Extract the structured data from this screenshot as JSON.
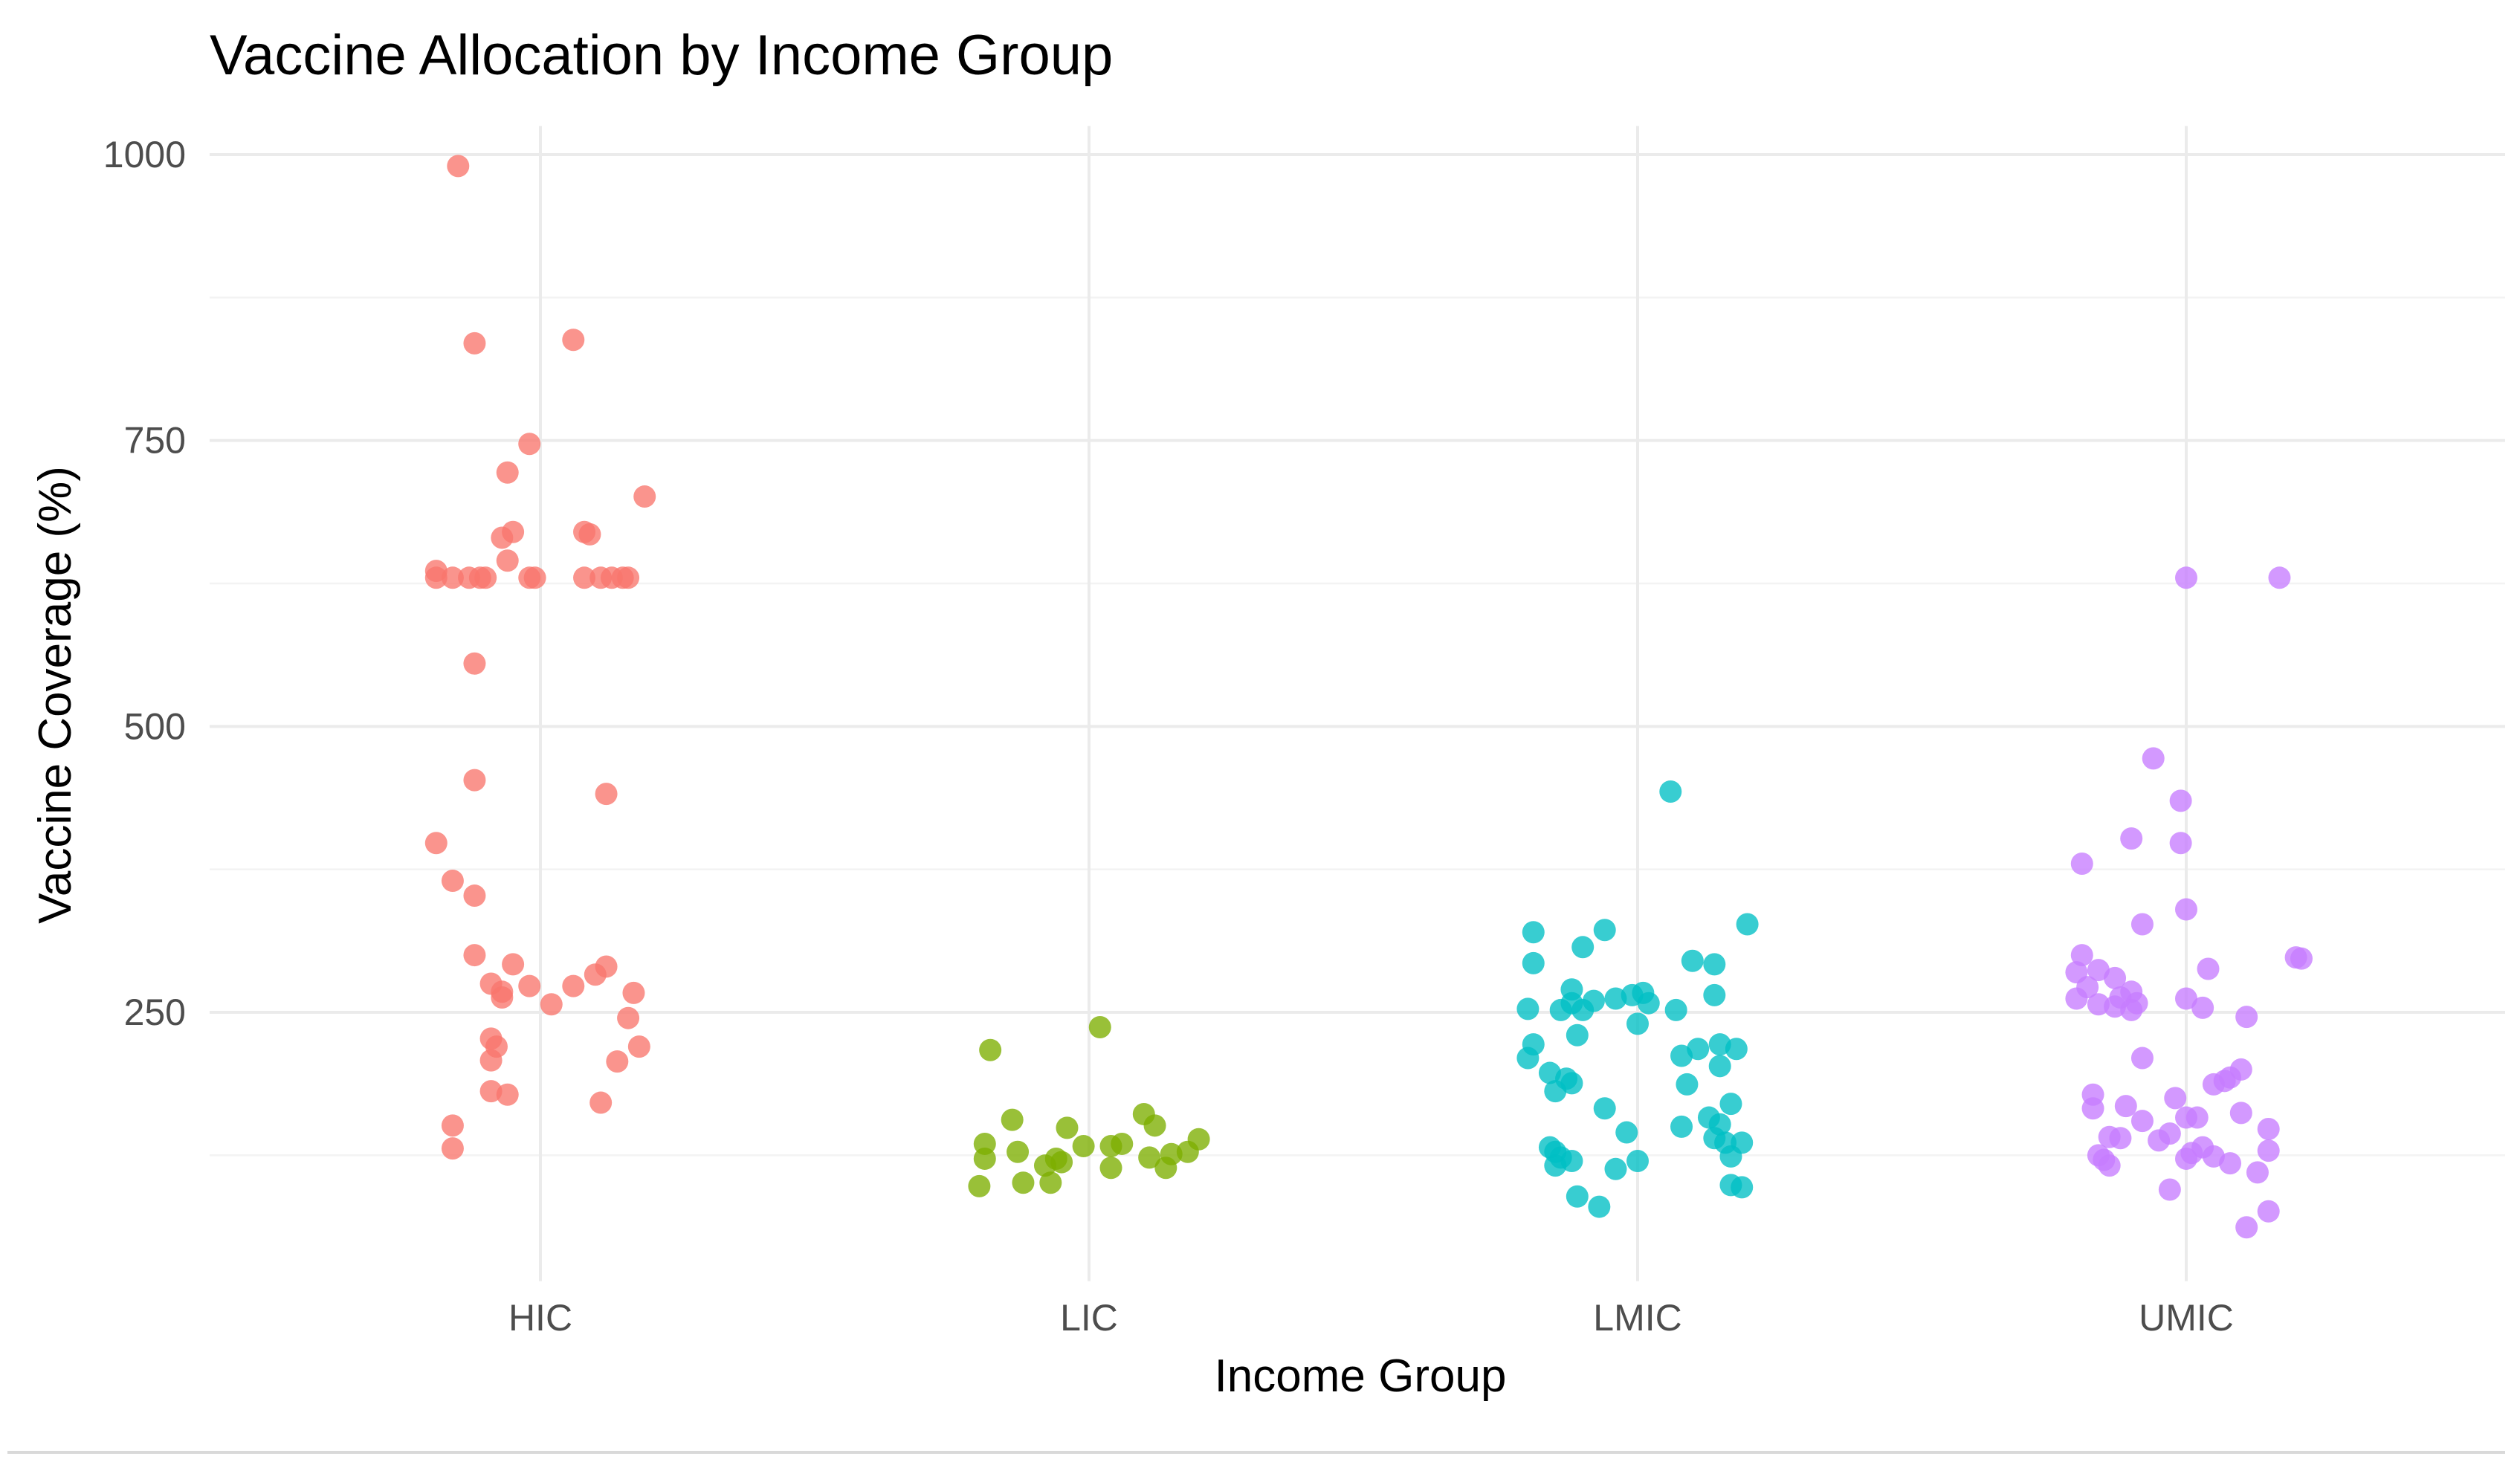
{
  "chart_data": {
    "type": "scatter",
    "title": "Vaccine Allocation by Income Group",
    "xlabel": "Income Group",
    "ylabel": "Vaccine Coverage (%)",
    "categories": [
      "HIC",
      "LIC",
      "LMIC",
      "UMIC"
    ],
    "ylim": [
      15,
      1025
    ],
    "yticks": [
      250,
      500,
      750,
      1000
    ],
    "grid": true,
    "legend": "none",
    "series": [
      {
        "category": "HIC",
        "color": "#F8766D",
        "points": [
          {
            "x": -0.15,
            "y": 990
          },
          {
            "x": -0.12,
            "y": 835
          },
          {
            "x": 0.06,
            "y": 838
          },
          {
            "x": -0.02,
            "y": 747
          },
          {
            "x": -0.06,
            "y": 722
          },
          {
            "x": 0.19,
            "y": 701
          },
          {
            "x": -0.05,
            "y": 670
          },
          {
            "x": -0.07,
            "y": 665
          },
          {
            "x": 0.09,
            "y": 668
          },
          {
            "x": 0.08,
            "y": 670
          },
          {
            "x": -0.06,
            "y": 645
          },
          {
            "x": -0.19,
            "y": 636
          },
          {
            "x": -0.19,
            "y": 630
          },
          {
            "x": -0.16,
            "y": 630
          },
          {
            "x": -0.13,
            "y": 630
          },
          {
            "x": -0.11,
            "y": 630
          },
          {
            "x": -0.1,
            "y": 630
          },
          {
            "x": -0.02,
            "y": 630
          },
          {
            "x": -0.01,
            "y": 630
          },
          {
            "x": 0.08,
            "y": 630
          },
          {
            "x": 0.11,
            "y": 630
          },
          {
            "x": 0.13,
            "y": 630
          },
          {
            "x": 0.15,
            "y": 630
          },
          {
            "x": 0.16,
            "y": 630
          },
          {
            "x": -0.12,
            "y": 555
          },
          {
            "x": -0.12,
            "y": 453
          },
          {
            "x": 0.12,
            "y": 441
          },
          {
            "x": -0.19,
            "y": 398
          },
          {
            "x": -0.16,
            "y": 365
          },
          {
            "x": -0.12,
            "y": 352
          },
          {
            "x": -0.12,
            "y": 300
          },
          {
            "x": -0.05,
            "y": 292
          },
          {
            "x": 0.12,
            "y": 290
          },
          {
            "x": 0.1,
            "y": 283
          },
          {
            "x": -0.09,
            "y": 275
          },
          {
            "x": -0.02,
            "y": 273
          },
          {
            "x": 0.06,
            "y": 273
          },
          {
            "x": -0.07,
            "y": 268
          },
          {
            "x": -0.07,
            "y": 263
          },
          {
            "x": 0.17,
            "y": 267
          },
          {
            "x": 0.02,
            "y": 257
          },
          {
            "x": 0.16,
            "y": 245
          },
          {
            "x": -0.09,
            "y": 227
          },
          {
            "x": -0.08,
            "y": 220
          },
          {
            "x": 0.18,
            "y": 220
          },
          {
            "x": -0.09,
            "y": 208
          },
          {
            "x": 0.14,
            "y": 207
          },
          {
            "x": -0.09,
            "y": 181
          },
          {
            "x": -0.06,
            "y": 178
          },
          {
            "x": 0.11,
            "y": 171
          },
          {
            "x": -0.16,
            "y": 151
          },
          {
            "x": -0.16,
            "y": 131
          }
        ]
      },
      {
        "category": "LIC",
        "color": "#7CAE00",
        "points": [
          {
            "x": 0.02,
            "y": 237
          },
          {
            "x": -0.18,
            "y": 217
          },
          {
            "x": 0.1,
            "y": 161
          },
          {
            "x": -0.14,
            "y": 156
          },
          {
            "x": 0.12,
            "y": 151
          },
          {
            "x": -0.04,
            "y": 149
          },
          {
            "x": 0.2,
            "y": 139
          },
          {
            "x": -0.19,
            "y": 135
          },
          {
            "x": 0.06,
            "y": 135
          },
          {
            "x": -0.01,
            "y": 133
          },
          {
            "x": 0.04,
            "y": 133
          },
          {
            "x": -0.13,
            "y": 128
          },
          {
            "x": 0.18,
            "y": 128
          },
          {
            "x": 0.15,
            "y": 126
          },
          {
            "x": 0.11,
            "y": 123
          },
          {
            "x": -0.19,
            "y": 122
          },
          {
            "x": -0.06,
            "y": 122
          },
          {
            "x": -0.05,
            "y": 119
          },
          {
            "x": -0.08,
            "y": 116
          },
          {
            "x": 0.04,
            "y": 114
          },
          {
            "x": 0.14,
            "y": 114
          },
          {
            "x": -0.12,
            "y": 101
          },
          {
            "x": -0.07,
            "y": 101
          },
          {
            "x": -0.2,
            "y": 98
          }
        ]
      },
      {
        "category": "LMIC",
        "color": "#00BFC4",
        "points": [
          {
            "x": 0.06,
            "y": 443
          },
          {
            "x": 0.2,
            "y": 327
          },
          {
            "x": -0.19,
            "y": 320
          },
          {
            "x": -0.06,
            "y": 322
          },
          {
            "x": -0.1,
            "y": 307
          },
          {
            "x": 0.1,
            "y": 295
          },
          {
            "x": 0.14,
            "y": 292
          },
          {
            "x": -0.19,
            "y": 293
          },
          {
            "x": -0.12,
            "y": 270
          },
          {
            "x": -0.01,
            "y": 265
          },
          {
            "x": 0.01,
            "y": 267
          },
          {
            "x": 0.14,
            "y": 265
          },
          {
            "x": -0.04,
            "y": 262
          },
          {
            "x": 0.02,
            "y": 258
          },
          {
            "x": -0.12,
            "y": 258
          },
          {
            "x": -0.08,
            "y": 260
          },
          {
            "x": -0.2,
            "y": 253
          },
          {
            "x": -0.14,
            "y": 252
          },
          {
            "x": -0.1,
            "y": 252
          },
          {
            "x": 0.07,
            "y": 252
          },
          {
            "x": 0.0,
            "y": 240
          },
          {
            "x": -0.11,
            "y": 230
          },
          {
            "x": -0.19,
            "y": 222
          },
          {
            "x": 0.15,
            "y": 222
          },
          {
            "x": 0.11,
            "y": 218
          },
          {
            "x": 0.18,
            "y": 218
          },
          {
            "x": 0.08,
            "y": 212
          },
          {
            "x": -0.2,
            "y": 210
          },
          {
            "x": 0.15,
            "y": 203
          },
          {
            "x": -0.16,
            "y": 197
          },
          {
            "x": -0.13,
            "y": 192
          },
          {
            "x": -0.12,
            "y": 188
          },
          {
            "x": 0.09,
            "y": 187
          },
          {
            "x": -0.15,
            "y": 181
          },
          {
            "x": 0.17,
            "y": 170
          },
          {
            "x": -0.06,
            "y": 166
          },
          {
            "x": 0.13,
            "y": 158
          },
          {
            "x": 0.15,
            "y": 152
          },
          {
            "x": 0.08,
            "y": 150
          },
          {
            "x": -0.02,
            "y": 145
          },
          {
            "x": 0.14,
            "y": 140
          },
          {
            "x": 0.16,
            "y": 136
          },
          {
            "x": 0.19,
            "y": 136
          },
          {
            "x": -0.16,
            "y": 132
          },
          {
            "x": -0.15,
            "y": 128
          },
          {
            "x": -0.14,
            "y": 123
          },
          {
            "x": -0.12,
            "y": 120
          },
          {
            "x": 0.0,
            "y": 120
          },
          {
            "x": 0.17,
            "y": 124
          },
          {
            "x": -0.15,
            "y": 116
          },
          {
            "x": -0.04,
            "y": 113
          },
          {
            "x": 0.17,
            "y": 99
          },
          {
            "x": 0.19,
            "y": 97
          },
          {
            "x": -0.11,
            "y": 89
          },
          {
            "x": -0.07,
            "y": 80
          }
        ]
      },
      {
        "category": "UMIC",
        "color": "#C77CFF",
        "points": [
          {
            "x": 0.0,
            "y": 630
          },
          {
            "x": 0.17,
            "y": 630
          },
          {
            "x": -0.06,
            "y": 472
          },
          {
            "x": -0.01,
            "y": 435
          },
          {
            "x": -0.1,
            "y": 402
          },
          {
            "x": -0.01,
            "y": 398
          },
          {
            "x": -0.19,
            "y": 380
          },
          {
            "x": 0.0,
            "y": 340
          },
          {
            "x": -0.08,
            "y": 327
          },
          {
            "x": -0.19,
            "y": 300
          },
          {
            "x": 0.2,
            "y": 298
          },
          {
            "x": 0.21,
            "y": 297
          },
          {
            "x": 0.04,
            "y": 288
          },
          {
            "x": -0.16,
            "y": 287
          },
          {
            "x": -0.2,
            "y": 285
          },
          {
            "x": -0.13,
            "y": 280
          },
          {
            "x": -0.18,
            "y": 272
          },
          {
            "x": -0.1,
            "y": 268
          },
          {
            "x": -0.12,
            "y": 263
          },
          {
            "x": -0.2,
            "y": 262
          },
          {
            "x": 0.0,
            "y": 262
          },
          {
            "x": -0.09,
            "y": 258
          },
          {
            "x": -0.16,
            "y": 257
          },
          {
            "x": -0.13,
            "y": 255
          },
          {
            "x": 0.03,
            "y": 254
          },
          {
            "x": -0.1,
            "y": 252
          },
          {
            "x": 0.11,
            "y": 246
          },
          {
            "x": -0.08,
            "y": 210
          },
          {
            "x": 0.1,
            "y": 200
          },
          {
            "x": 0.08,
            "y": 193
          },
          {
            "x": 0.07,
            "y": 190
          },
          {
            "x": 0.05,
            "y": 187
          },
          {
            "x": -0.17,
            "y": 178
          },
          {
            "x": -0.02,
            "y": 175
          },
          {
            "x": -0.11,
            "y": 168
          },
          {
            "x": -0.17,
            "y": 166
          },
          {
            "x": 0.1,
            "y": 162
          },
          {
            "x": 0.0,
            "y": 158
          },
          {
            "x": 0.02,
            "y": 158
          },
          {
            "x": -0.08,
            "y": 155
          },
          {
            "x": 0.15,
            "y": 148
          },
          {
            "x": -0.03,
            "y": 144
          },
          {
            "x": -0.14,
            "y": 141
          },
          {
            "x": -0.12,
            "y": 140
          },
          {
            "x": -0.05,
            "y": 138
          },
          {
            "x": 0.03,
            "y": 132
          },
          {
            "x": 0.01,
            "y": 127
          },
          {
            "x": -0.16,
            "y": 125
          },
          {
            "x": 0.05,
            "y": 124
          },
          {
            "x": 0.0,
            "y": 122
          },
          {
            "x": 0.15,
            "y": 129
          },
          {
            "x": -0.15,
            "y": 121
          },
          {
            "x": 0.08,
            "y": 118
          },
          {
            "x": -0.14,
            "y": 116
          },
          {
            "x": 0.13,
            "y": 110
          },
          {
            "x": -0.03,
            "y": 95
          },
          {
            "x": 0.15,
            "y": 76
          },
          {
            "x": 0.11,
            "y": 62
          }
        ]
      }
    ]
  }
}
